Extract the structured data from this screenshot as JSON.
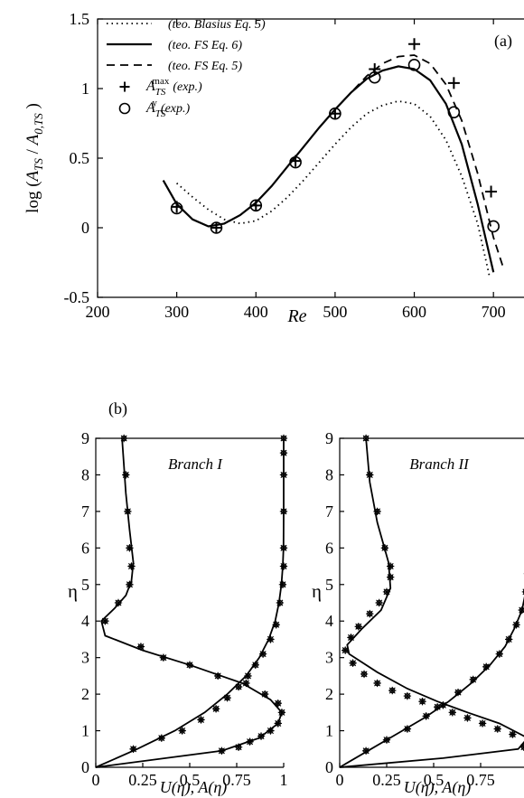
{
  "chart_data": [
    {
      "type": "line",
      "panel_label": "(a)",
      "xlabel": "Re",
      "ylabel_parts": [
        "log (",
        "A",
        "TS",
        " / ",
        "A",
        "0,TS",
        " )"
      ],
      "xlim": [
        200,
        750
      ],
      "ylim": [
        -0.5,
        1.5
      ],
      "xticks": [
        200,
        300,
        400,
        500,
        600,
        700
      ],
      "yticks": [
        -0.5,
        0,
        0.5,
        1,
        1.5
      ],
      "ytick_labels": [
        "-0.5",
        "0",
        "0.5",
        "1",
        "1.5"
      ],
      "legend_position": "top-left",
      "series": [
        {
          "name": "(teo. Blasius Eq. 5)",
          "style": "dotted",
          "x": [
            300,
            320,
            340,
            360,
            380,
            400,
            420,
            440,
            460,
            480,
            500,
            520,
            540,
            560,
            580,
            600,
            620,
            640,
            660,
            680,
            695
          ],
          "y": [
            0.32,
            0.22,
            0.13,
            0.06,
            0.03,
            0.05,
            0.12,
            0.22,
            0.34,
            0.47,
            0.6,
            0.72,
            0.82,
            0.88,
            0.91,
            0.89,
            0.8,
            0.63,
            0.37,
            0.03,
            -0.35
          ]
        },
        {
          "name": "(teo. FS Eq. 6)",
          "style": "solid",
          "x": [
            283,
            300,
            320,
            340,
            360,
            380,
            400,
            420,
            440,
            460,
            480,
            500,
            520,
            540,
            560,
            580,
            600,
            620,
            640,
            660,
            680,
            700
          ],
          "y": [
            0.34,
            0.17,
            0.06,
            0.01,
            0.03,
            0.09,
            0.18,
            0.3,
            0.44,
            0.58,
            0.72,
            0.85,
            0.97,
            1.07,
            1.13,
            1.16,
            1.14,
            1.06,
            0.89,
            0.6,
            0.17,
            -0.32
          ]
        },
        {
          "name": "(teo. FS Eq. 5)",
          "style": "dashed",
          "x": [
            500,
            520,
            540,
            560,
            580,
            600,
            620,
            640,
            660,
            680,
            700,
            712
          ],
          "y": [
            0.85,
            0.97,
            1.09,
            1.18,
            1.23,
            1.24,
            1.18,
            1.03,
            0.77,
            0.39,
            -0.07,
            -0.28
          ]
        },
        {
          "name": "A_TS^max (exp.)",
          "name_parts": [
            "A",
            "TS",
            "max",
            "(exp.)"
          ],
          "style": "plus",
          "x": [
            300,
            350,
            400,
            450,
            500,
            550,
            600,
            650,
            697
          ],
          "y": [
            0.15,
            0.0,
            0.16,
            0.48,
            0.82,
            1.14,
            1.32,
            1.04,
            0.26
          ]
        },
        {
          "name": "A_TS^y (exp.)",
          "name_parts": [
            "A",
            "TS",
            "y",
            "(exp.)"
          ],
          "style": "circle",
          "x": [
            300,
            350,
            400,
            450,
            500,
            550,
            600,
            650,
            700
          ],
          "y": [
            0.14,
            0.0,
            0.16,
            0.47,
            0.82,
            1.08,
            1.17,
            0.83,
            0.01
          ]
        }
      ]
    },
    {
      "type": "line",
      "panel_label": "(b)",
      "title": "Branch I",
      "xlabel": "U(η), A(η)",
      "ylabel": "η",
      "xlim": [
        0,
        1
      ],
      "ylim": [
        0,
        9
      ],
      "xticks": [
        0,
        0.25,
        0.5,
        0.75,
        1
      ],
      "xtick_labels": [
        "0",
        "0.25",
        "0.5",
        "0.75",
        "1"
      ],
      "yticks": [
        0,
        1,
        2,
        3,
        4,
        5,
        6,
        7,
        8,
        9
      ],
      "series": [
        {
          "name": "U",
          "style": "solid",
          "x": [
            0,
            0.22,
            0.42,
            0.58,
            0.7,
            0.8,
            0.87,
            0.92,
            0.955,
            0.975,
            0.988,
            0.995,
            0.999,
            1,
            1
          ],
          "y": [
            0,
            0.5,
            1.0,
            1.5,
            2.0,
            2.5,
            3.0,
            3.5,
            4.0,
            4.5,
            5.0,
            5.5,
            6.0,
            7.0,
            9.0
          ]
        },
        {
          "name": "A",
          "style": "solid",
          "x": [
            0,
            0.67,
            0.87,
            0.97,
            0.99,
            0.93,
            0.78,
            0.5,
            0.25,
            0.05,
            0.03,
            0.1,
            0.16,
            0.19,
            0.2,
            0.18,
            0.16,
            0.14
          ],
          "y": [
            0,
            0.45,
            0.8,
            1.2,
            1.5,
            1.85,
            2.3,
            2.8,
            3.2,
            3.6,
            4.0,
            4.35,
            4.7,
            5.1,
            5.6,
            6.5,
            7.5,
            9.0
          ]
        },
        {
          "name": "U (exp.)",
          "style": "marker",
          "x": [
            0.2,
            0.35,
            0.46,
            0.56,
            0.64,
            0.7,
            0.76,
            0.81,
            0.85,
            0.89,
            0.93,
            0.96,
            0.98,
            0.995,
            1,
            1,
            1,
            1,
            1,
            1
          ],
          "y": [
            0.5,
            0.8,
            1.0,
            1.3,
            1.6,
            1.9,
            2.2,
            2.5,
            2.8,
            3.1,
            3.5,
            3.9,
            4.5,
            5.0,
            5.5,
            6.0,
            7.0,
            8.0,
            8.6,
            9.0
          ]
        },
        {
          "name": "A (exp.)",
          "style": "marker",
          "x": [
            0.67,
            0.76,
            0.82,
            0.88,
            0.93,
            0.97,
            0.99,
            0.97,
            0.9,
            0.8,
            0.65,
            0.5,
            0.36,
            0.24,
            0.05,
            0.12,
            0.18,
            0.19,
            0.18,
            0.17,
            0.16,
            0.15
          ],
          "y": [
            0.45,
            0.55,
            0.7,
            0.85,
            1.0,
            1.2,
            1.5,
            1.75,
            2.0,
            2.3,
            2.5,
            2.8,
            3.0,
            3.3,
            4.0,
            4.5,
            5.0,
            5.5,
            6.0,
            7.0,
            8.0,
            9.0
          ]
        }
      ]
    },
    {
      "type": "line",
      "title": "Branch II",
      "xlabel": "U(η), A(η)",
      "ylabel": "η",
      "xlim": [
        0,
        1
      ],
      "ylim": [
        0,
        9
      ],
      "xticks": [
        0,
        0.25,
        0.5,
        0.75
      ],
      "xtick_labels": [
        "0",
        "0.25",
        "0.5",
        "0.75"
      ],
      "yticks": [
        0,
        1,
        2,
        3,
        4,
        5,
        6,
        7,
        8,
        9
      ],
      "series": [
        {
          "name": "U",
          "style": "solid",
          "x": [
            0,
            0.15,
            0.3,
            0.45,
            0.58,
            0.7,
            0.8,
            0.88,
            0.93,
            0.97,
            0.99,
            1.0,
            1.0
          ],
          "y": [
            0,
            0.45,
            0.9,
            1.35,
            1.8,
            2.3,
            2.8,
            3.3,
            3.8,
            4.3,
            4.8,
            5.5,
            9.0
          ]
        },
        {
          "name": "A",
          "style": "solid",
          "x": [
            0,
            0.55,
            0.95,
            1.0,
            0.85,
            0.68,
            0.52,
            0.36,
            0.2,
            0.05,
            0.04,
            0.12,
            0.22,
            0.27,
            0.26,
            0.2,
            0.16,
            0.14
          ],
          "y": [
            0,
            0.25,
            0.5,
            0.8,
            1.2,
            1.5,
            1.8,
            2.15,
            2.6,
            3.1,
            3.35,
            3.8,
            4.3,
            4.9,
            5.6,
            6.7,
            7.8,
            9.0
          ]
        },
        {
          "name": "U (exp.)",
          "style": "marker",
          "x": [
            0.14,
            0.25,
            0.36,
            0.46,
            0.55,
            0.63,
            0.71,
            0.78,
            0.85,
            0.9,
            0.94,
            0.97,
            0.99,
            1.0
          ],
          "y": [
            0.45,
            0.75,
            1.05,
            1.4,
            1.7,
            2.05,
            2.4,
            2.75,
            3.1,
            3.5,
            3.9,
            4.3,
            4.8,
            5.3
          ]
        },
        {
          "name": "A (exp.)",
          "style": "marker",
          "x": [
            0.98,
            0.92,
            0.84,
            0.76,
            0.68,
            0.6,
            0.52,
            0.44,
            0.36,
            0.28,
            0.2,
            0.13,
            0.07,
            0.03,
            0.06,
            0.1,
            0.16,
            0.21,
            0.25,
            0.27,
            0.27,
            0.24,
            0.2,
            0.16,
            0.14
          ],
          "y": [
            0.55,
            0.9,
            1.05,
            1.2,
            1.35,
            1.5,
            1.65,
            1.8,
            1.95,
            2.1,
            2.3,
            2.55,
            2.85,
            3.2,
            3.55,
            3.85,
            4.2,
            4.5,
            4.8,
            5.2,
            5.5,
            6.0,
            7.0,
            8.0,
            9.0
          ]
        }
      ]
    }
  ]
}
